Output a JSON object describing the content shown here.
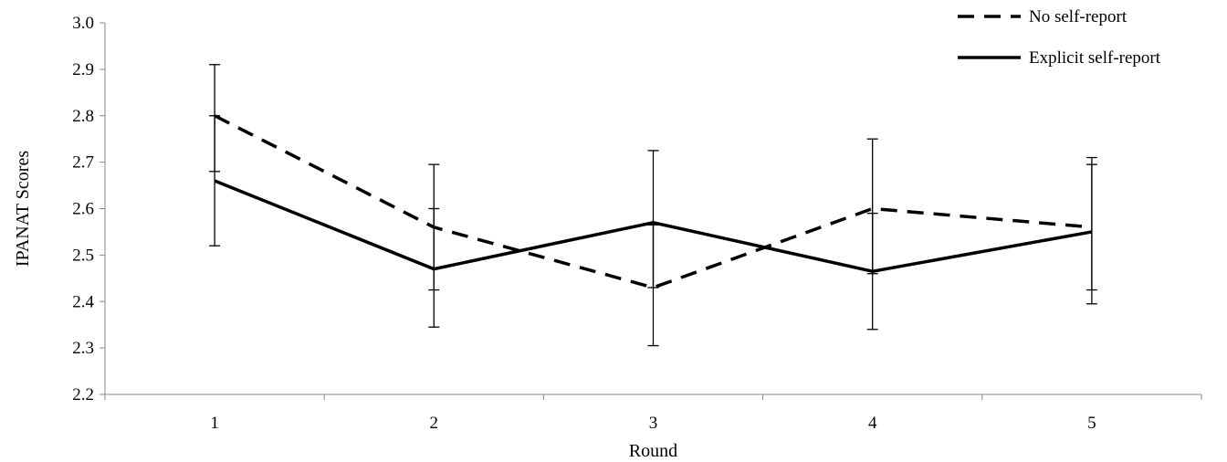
{
  "chart_data": {
    "type": "line",
    "title": "",
    "xlabel": "Round",
    "ylabel": "IPANAT Scores",
    "categories": [
      "1",
      "2",
      "3",
      "4",
      "5"
    ],
    "ylim": [
      2.2,
      3.0
    ],
    "yticks": [
      "2.2",
      "2.3",
      "2.4",
      "2.5",
      "2.6",
      "2.7",
      "2.8",
      "2.9",
      "3.0"
    ],
    "grid": false,
    "legend_position": "top-right",
    "series": [
      {
        "name": "No self-report",
        "style": "dashed",
        "color": "#000000",
        "values": [
          2.8,
          2.56,
          2.43,
          2.6,
          2.56
        ],
        "error_low": [
          2.68,
          2.425,
          2.305,
          2.46,
          2.425
        ],
        "error_high": [
          2.91,
          2.695,
          2.565,
          2.75,
          2.695
        ]
      },
      {
        "name": "Explicit self-report",
        "style": "solid",
        "color": "#000000",
        "values": [
          2.66,
          2.47,
          2.57,
          2.465,
          2.55
        ],
        "error_low": [
          2.52,
          2.345,
          2.43,
          2.34,
          2.395
        ],
        "error_high": [
          2.8,
          2.6,
          2.725,
          2.59,
          2.71
        ]
      }
    ]
  }
}
